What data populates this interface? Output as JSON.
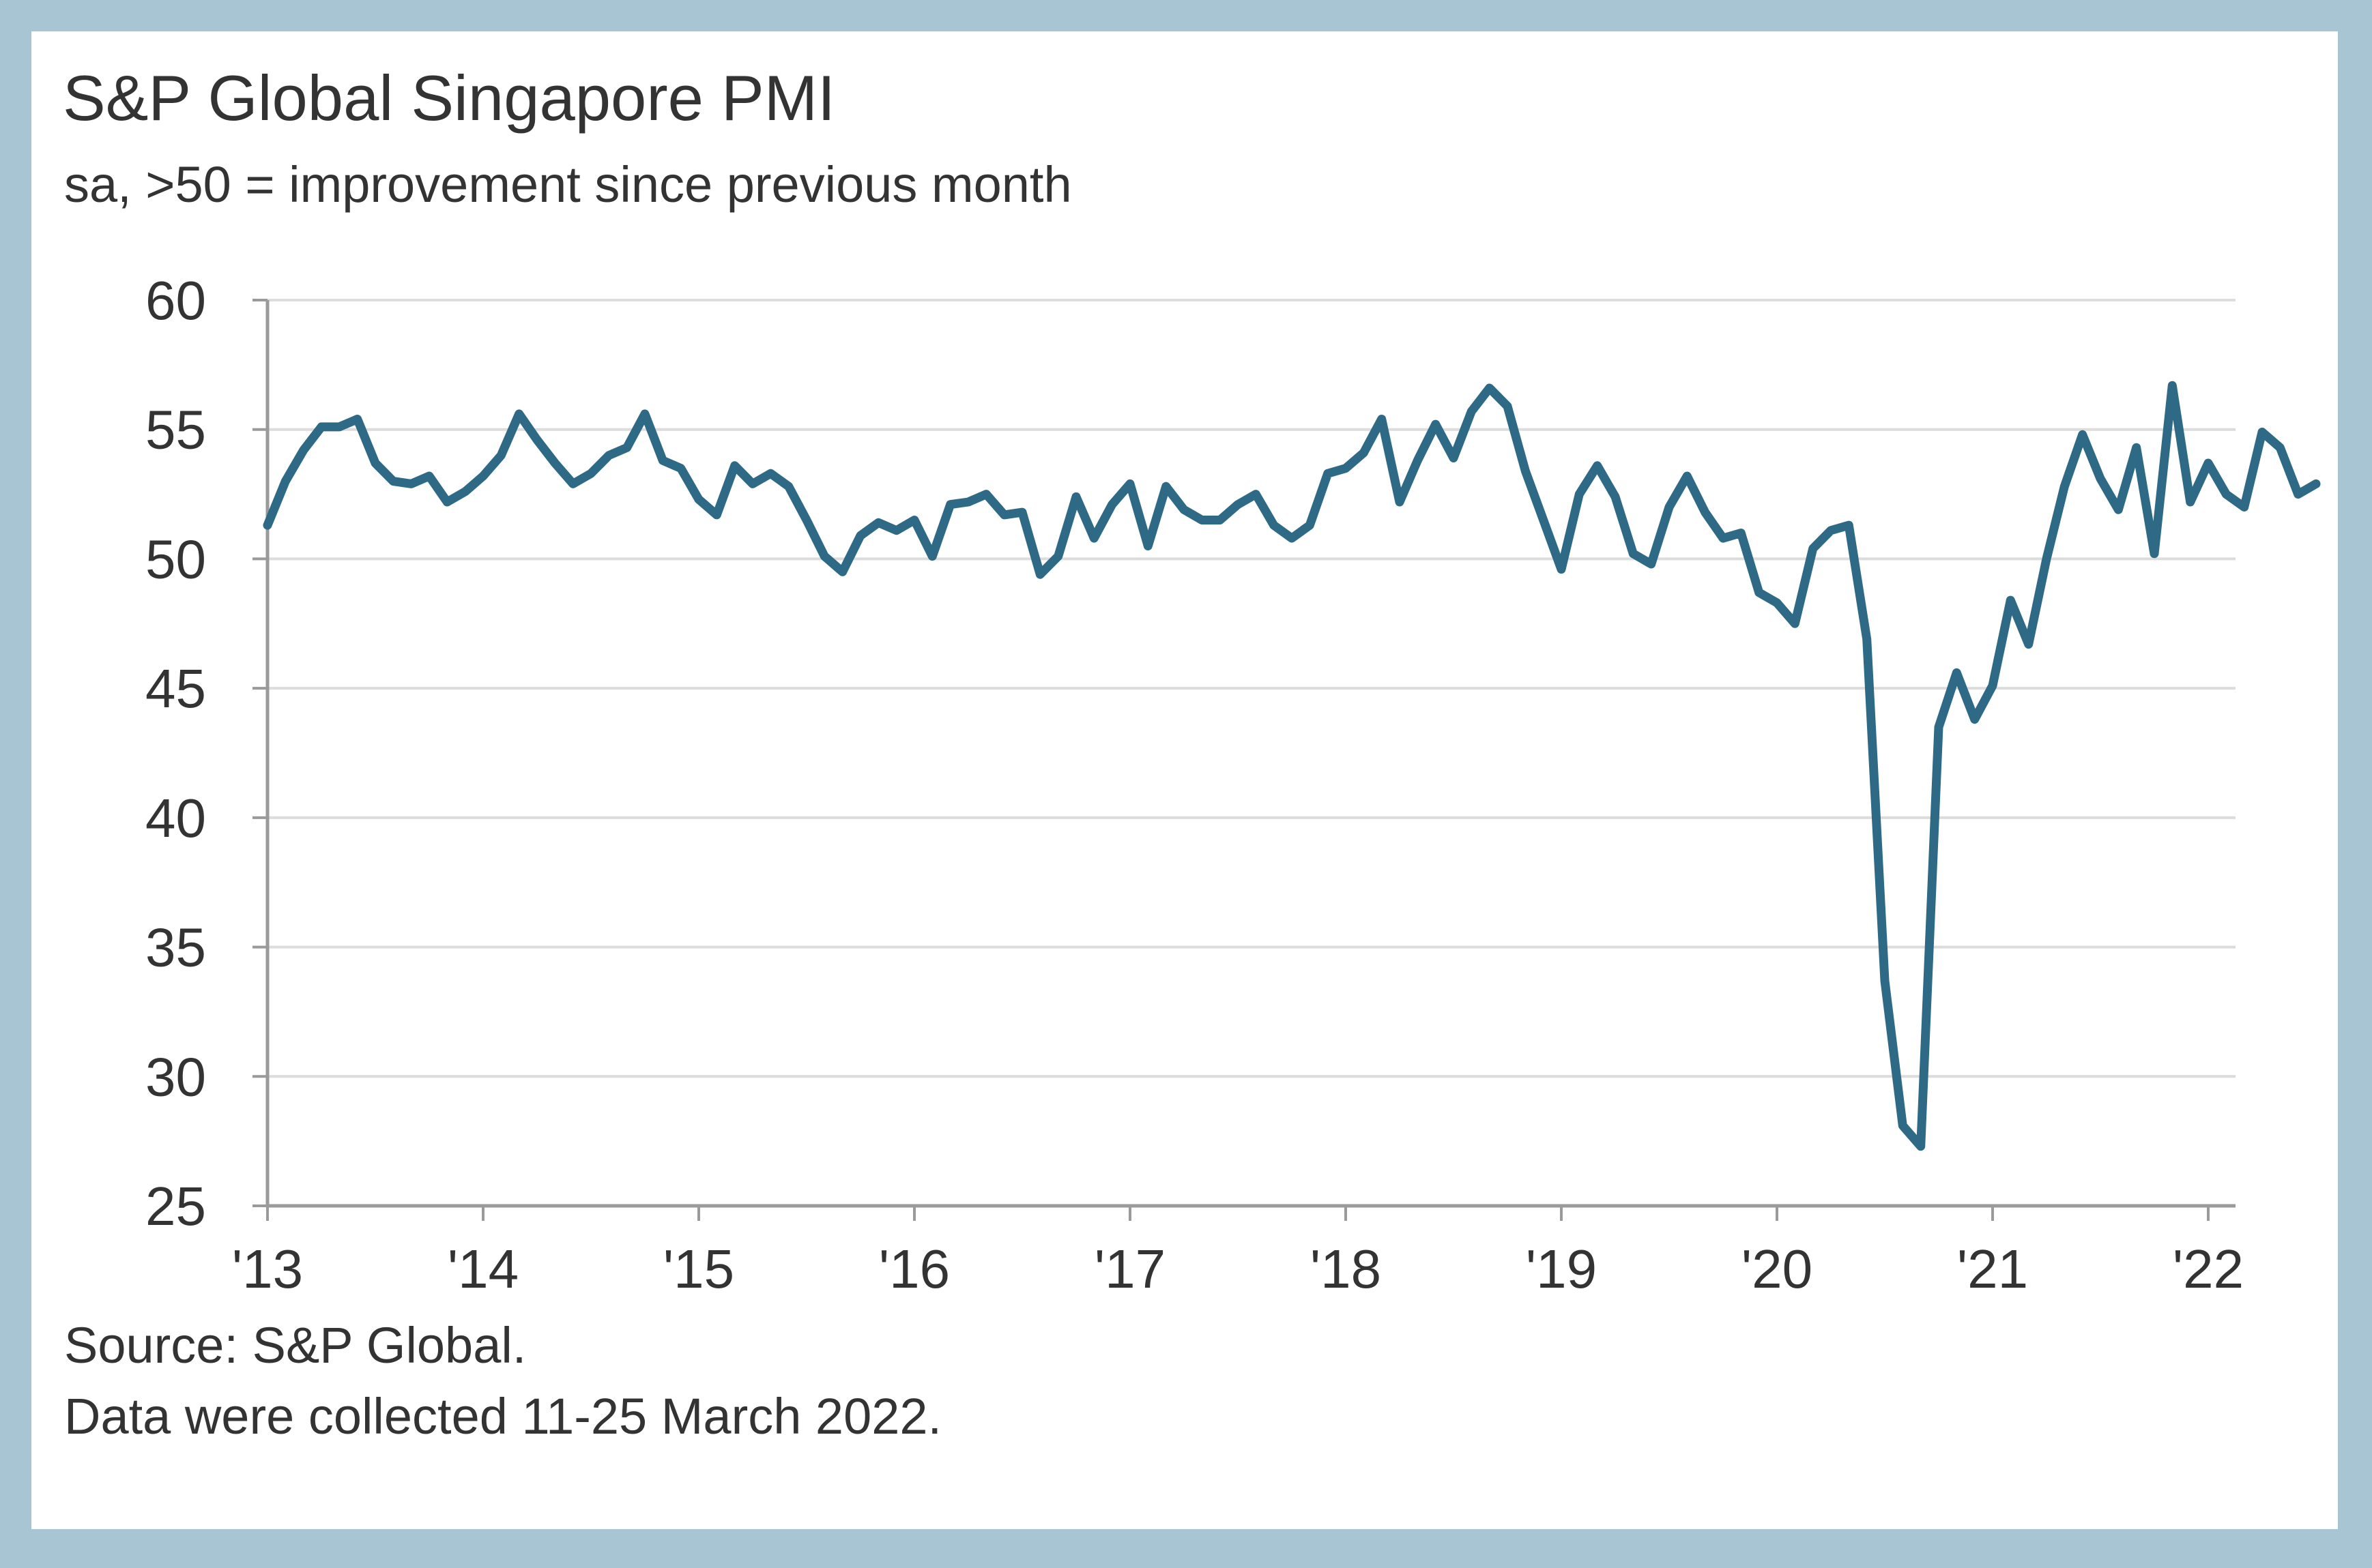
{
  "colors": {
    "background": "#a7c5d3",
    "card": "#ffffff",
    "line": "#2e6a85",
    "grid": "#dcdcdc",
    "axis": "#9a9a9a",
    "text": "#333333"
  },
  "header": {
    "title": "S&P Global Singapore PMI",
    "subtitle": "sa, >50 = improvement since previous month"
  },
  "footer": {
    "source": "Source: S&P Global.",
    "collection": "Data were collected 11-25 March 2022."
  },
  "chart_data": {
    "type": "line",
    "title": "S&P Global Singapore PMI",
    "subtitle": "sa, >50 = improvement since previous month",
    "xlabel": "",
    "ylabel": "",
    "ylim": [
      25,
      60
    ],
    "yticks": [
      60,
      55,
      50,
      45,
      40,
      35,
      30,
      25
    ],
    "x_tick_labels": [
      "'13",
      "'14",
      "'15",
      "'16",
      "'17",
      "'18",
      "'19",
      "'20",
      "'21",
      "'22"
    ],
    "grid": true,
    "legend": "none",
    "series": [
      {
        "name": "Singapore PMI",
        "start": "2013-01",
        "frequency": "monthly",
        "values": [
          51.3,
          53.0,
          54.2,
          55.1,
          55.1,
          55.4,
          53.7,
          53.0,
          52.9,
          53.2,
          52.2,
          52.6,
          53.2,
          54.0,
          55.6,
          54.6,
          53.7,
          52.9,
          53.3,
          54.0,
          54.3,
          55.6,
          53.8,
          53.5,
          52.3,
          51.7,
          53.6,
          52.9,
          53.3,
          52.8,
          51.5,
          50.1,
          49.5,
          50.9,
          51.4,
          51.1,
          51.5,
          50.1,
          52.1,
          52.2,
          52.5,
          51.7,
          51.8,
          49.4,
          50.1,
          52.4,
          50.8,
          52.1,
          52.9,
          50.5,
          52.8,
          51.9,
          51.5,
          51.5,
          52.1,
          52.5,
          51.3,
          50.8,
          51.3,
          53.3,
          53.5,
          54.1,
          55.4,
          52.2,
          53.8,
          55.2,
          53.9,
          55.7,
          56.6,
          55.9,
          53.4,
          51.5,
          49.6,
          52.5,
          53.6,
          52.4,
          50.2,
          49.8,
          52.0,
          53.2,
          51.8,
          50.8,
          51.0,
          48.7,
          48.3,
          47.5,
          50.4,
          51.1,
          51.3,
          46.9,
          33.7,
          28.1,
          27.3,
          43.5,
          45.6,
          43.8,
          45.1,
          48.4,
          46.7,
          50.0,
          52.8,
          54.8,
          53.1,
          51.9,
          54.3,
          50.2,
          56.7,
          52.2,
          53.7,
          52.5,
          52.0,
          54.9,
          54.3,
          52.5,
          52.9
        ]
      }
    ]
  }
}
